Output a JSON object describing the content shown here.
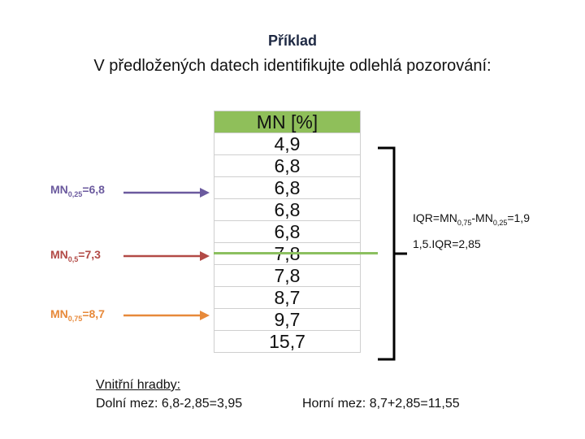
{
  "title": "Příklad",
  "subtitle": "V předložených datech identifikujte odlehlá pozorování:",
  "labels": {
    "q25": {
      "prefix": "MN",
      "sub": "0,25",
      "suffix": "=6,8",
      "color": "#6b5a9e"
    },
    "q50": {
      "prefix": "MN",
      "sub": "0,5",
      "suffix": "=7,3",
      "color": "#b24a46"
    },
    "q75": {
      "prefix": "MN",
      "sub": "0,75",
      "suffix": "=8,7",
      "color": "#e7893a"
    }
  },
  "table": {
    "header": "MN [%]",
    "header_color": "#8fbf5a",
    "values": [
      "4,9",
      "6,8",
      "6,8",
      "6,8",
      "6,8",
      "7,8",
      "7,8",
      "8,7",
      "9,7",
      "15,7"
    ]
  },
  "iqr": {
    "line1_prefix": "IQR=MN",
    "line1_sub1": "0,75",
    "line1_mid": "-MN",
    "line1_sub2": "0,25",
    "line1_suffix": "=1,9",
    "line2": "1,5.IQR=2,85"
  },
  "fences": {
    "heading": "Vnitřní hradby:",
    "lower": "Dolní mez: 6,8-2,85=3,95",
    "upper": "Horní mez: 8,7+2,85=11,55"
  }
}
